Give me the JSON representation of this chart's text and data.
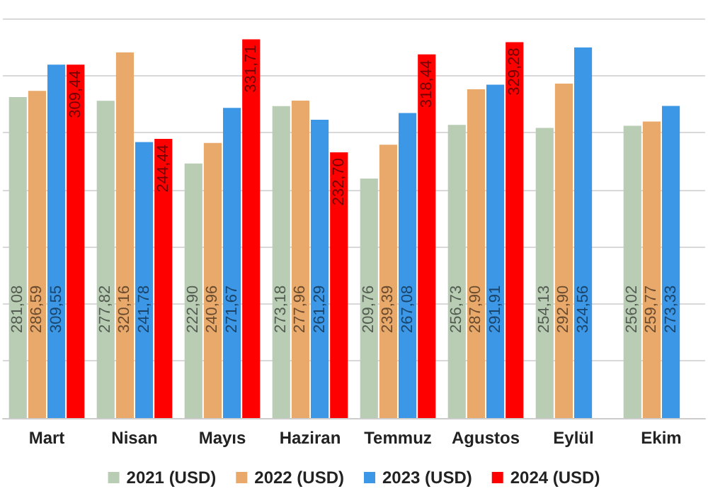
{
  "chart_data": {
    "type": "bar",
    "categories": [
      "Mart",
      "Nisan",
      "Mayıs",
      "Haziran",
      "Temmuz",
      "Agustos",
      "Eylül",
      "Ekim"
    ],
    "series": [
      {
        "name": "2021 (USD)",
        "color": "#b9cdb4",
        "values": [
          281.08,
          277.82,
          222.9,
          273.18,
          209.76,
          256.73,
          254.13,
          256.02
        ],
        "value_labels": [
          "281,08",
          "277,82",
          "222,90",
          "273,18",
          "209,76",
          "256,73",
          "254,13",
          "256,02"
        ]
      },
      {
        "name": "2022 (USD)",
        "color": "#e9a96b",
        "values": [
          286.59,
          320.16,
          240.96,
          277.96,
          239.39,
          287.9,
          292.9,
          259.77
        ],
        "value_labels": [
          "286,59",
          "320,16",
          "240,96",
          "277,96",
          "239,39",
          "287,90",
          "292,90",
          "259,77"
        ]
      },
      {
        "name": "2023 (USD)",
        "color": "#3c97e6",
        "values": [
          309.55,
          241.78,
          271.67,
          261.29,
          267.08,
          291.91,
          324.56,
          273.33
        ],
        "value_labels": [
          "309,55",
          "241,78",
          "271,67",
          "261,29",
          "267,08",
          "291,91",
          "324,56",
          "273,33"
        ]
      },
      {
        "name": "2024 (USD)",
        "color": "#ff0000",
        "values": [
          309.44,
          244.44,
          331.71,
          232.7,
          318.44,
          329.28,
          null,
          null
        ],
        "value_labels": [
          "309,44",
          "244,44",
          "331,71",
          "232,70",
          "318,44",
          "329,28",
          null,
          null
        ]
      }
    ],
    "ylim": [
      0,
      350
    ],
    "yticks": [
      0,
      50,
      100,
      150,
      200,
      250,
      300,
      350
    ],
    "tick_labels": "x",
    "grid": "y",
    "legend": "bottom"
  }
}
